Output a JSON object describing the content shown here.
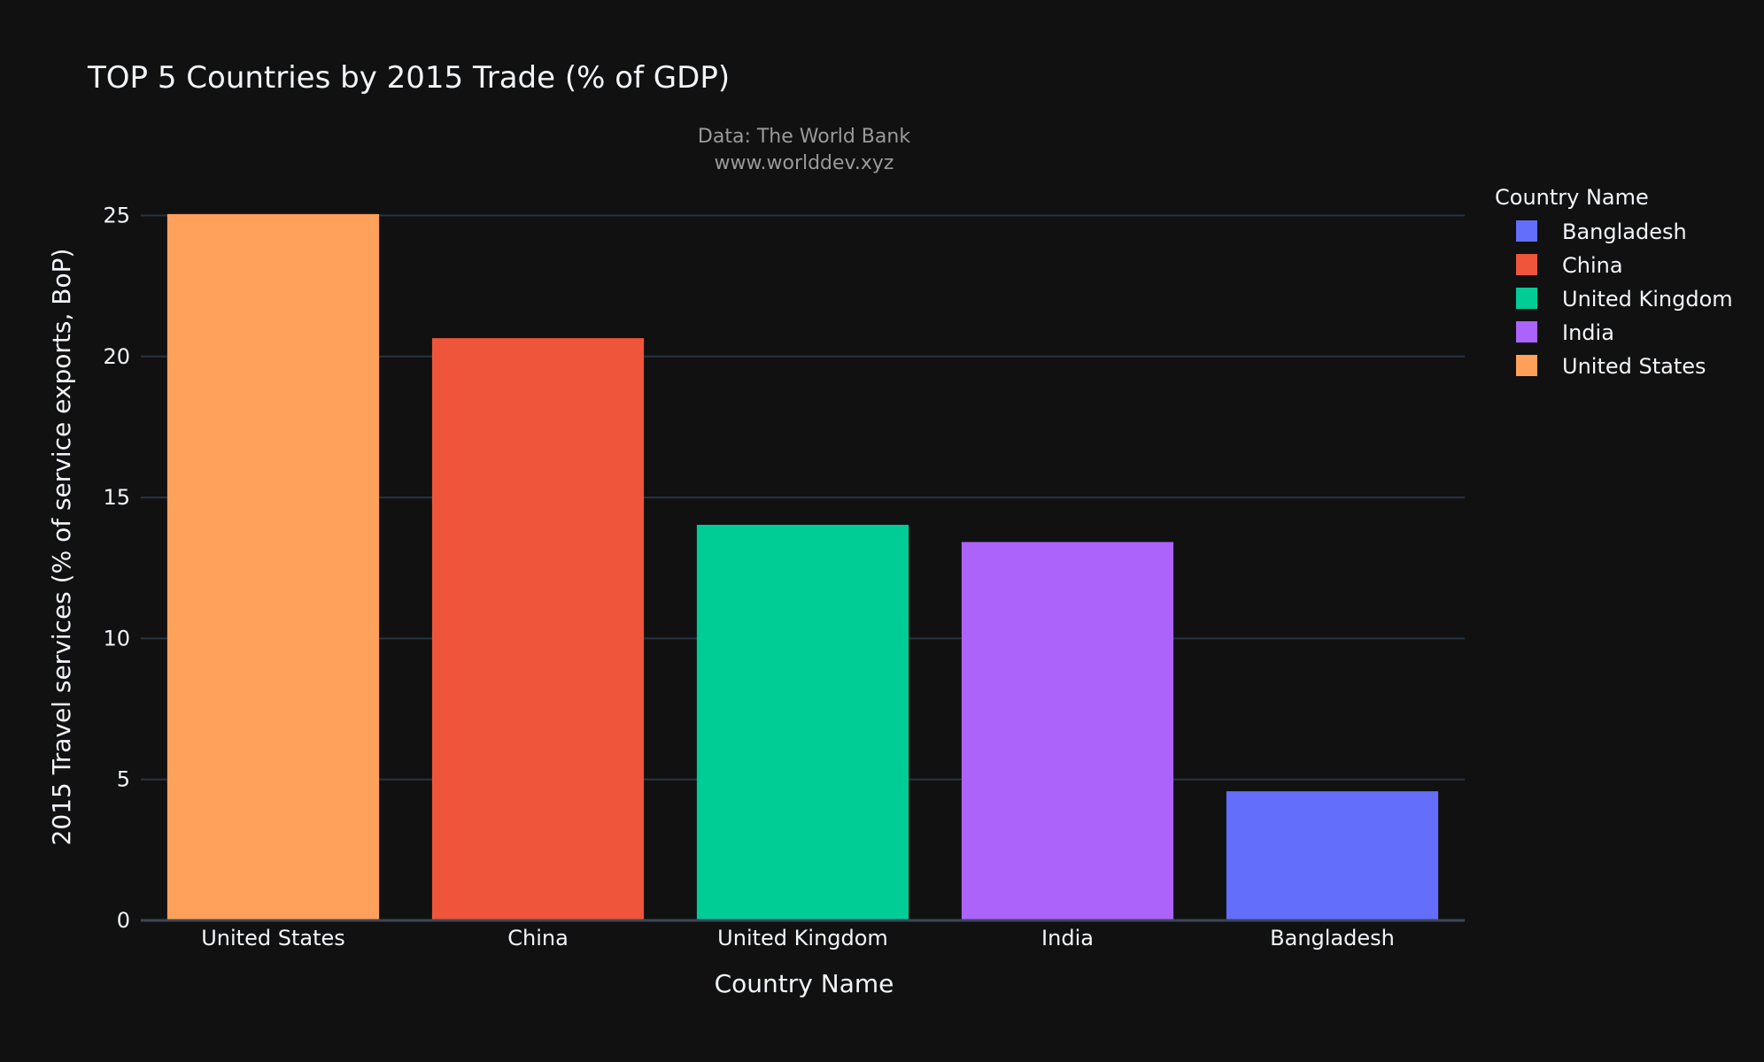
{
  "chart_data": {
    "type": "bar",
    "title": "TOP 5 Countries by 2015 Trade (% of GDP)",
    "subtitle_lines": [
      "Data: The World Bank",
      "www.worlddev.xyz"
    ],
    "xlabel": "Country Name",
    "ylabel": "2015 Travel services (% of service exports, BoP)",
    "categories": [
      "United States",
      "China",
      "United Kingdom",
      "India",
      "Bangladesh"
    ],
    "values": [
      25.05,
      20.65,
      14.03,
      13.42,
      4.58
    ],
    "colors": [
      "#FFA15A",
      "#EF553B",
      "#00CC96",
      "#AB63FA",
      "#636EFA"
    ],
    "ylim": [
      0,
      25.8
    ],
    "yticks": [
      0,
      5,
      10,
      15,
      20,
      25
    ],
    "grid": true,
    "legend": {
      "title": "Country Name",
      "placement": "top-right",
      "items": [
        {
          "label": "Bangladesh",
          "color": "#636EFA"
        },
        {
          "label": "China",
          "color": "#EF553B"
        },
        {
          "label": "United Kingdom",
          "color": "#00CC96"
        },
        {
          "label": "India",
          "color": "#AB63FA"
        },
        {
          "label": "United States",
          "color": "#FFA15A"
        }
      ]
    }
  }
}
